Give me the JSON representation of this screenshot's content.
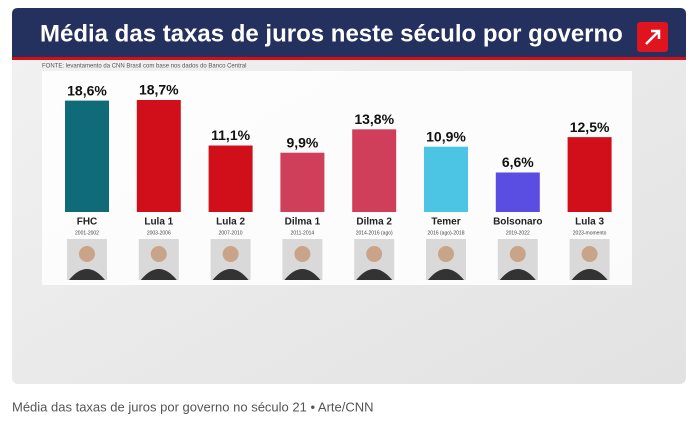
{
  "chart_data": {
    "type": "bar",
    "title": "Média das taxas de juros neste século por governo",
    "source": "FONTE: levantamento da CNN Brasil com base nos dados do Banco Central",
    "categories": [
      "FHC",
      "Lula 1",
      "Lula 2",
      "Dilma 1",
      "Dilma 2",
      "Temer",
      "Bolsonaro",
      "Lula 3"
    ],
    "periods": [
      "2001-2002",
      "2003-2006",
      "2007-2010",
      "2011-2014",
      "2014-2016 (ago)",
      "2016 (ago)-2018",
      "2019-2022",
      "2023-momento"
    ],
    "values": [
      18.6,
      18.7,
      11.1,
      9.9,
      13.8,
      10.9,
      6.6,
      12.5
    ],
    "value_labels": [
      "18,6%",
      "18,7%",
      "11,1%",
      "9,9%",
      "13,8%",
      "10,9%",
      "6,6%",
      "12,5%"
    ],
    "colors": [
      "#0f6b78",
      "#d10f1b",
      "#d10f1b",
      "#cf3f5a",
      "#cf3f5a",
      "#4cc4e4",
      "#5a4ee2",
      "#d10f1b"
    ]
  },
  "caption": "Média das taxas de juros por governo no século 21 • Arte/CNN"
}
